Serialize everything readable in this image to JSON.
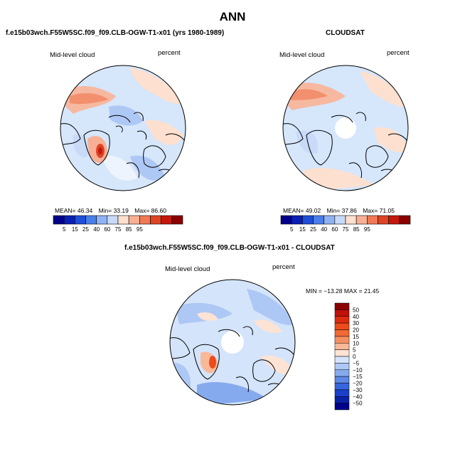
{
  "title": "ANN",
  "panels": [
    {
      "id": "model",
      "title": "f.e15b03wch.F55W5SC.f09_f09.CLB-OGW-T1-x01 (yrs 1980-1989)",
      "variable": "Mid-level cloud",
      "units": "percent",
      "stats": {
        "mean_label": "MEAN=",
        "mean": "46.34",
        "min_label": "Min=",
        "min": "33.19",
        "max_label": "Max=",
        "max": "86.60"
      }
    },
    {
      "id": "obs",
      "title": "CLOUDSAT",
      "variable": "Mid-level cloud",
      "units": "percent",
      "stats": {
        "mean_label": "MEAN=",
        "mean": "49.02",
        "min_label": "Min=",
        "min": "37.86",
        "max_label": "Max=",
        "max": "71.05"
      }
    },
    {
      "id": "diff",
      "title": "f.e15b03wch.F55W5SC.f09_f09.CLB-OGW-T1-x01 - CLOUDSAT",
      "variable": "Mid-level cloud",
      "units": "percent",
      "stats_line": "MIN = −13.28  MAX =  21.45"
    }
  ],
  "abs_colorbar": {
    "labels": [
      "5",
      "15",
      "25",
      "40",
      "60",
      "75",
      "85",
      "95"
    ],
    "colors": [
      "#00008b",
      "#0a1fb5",
      "#1f4fd8",
      "#4a7fe8",
      "#8fb2f2",
      "#c8daf8",
      "#fde0cf",
      "#f7b095",
      "#f07a55",
      "#de4525",
      "#c4180d",
      "#8b0000"
    ]
  },
  "diff_colorbar": {
    "labels": [
      "50",
      "40",
      "30",
      "20",
      "15",
      "10",
      "5",
      "0",
      "−5",
      "−10",
      "−15",
      "−20",
      "−30",
      "−40",
      "−50"
    ],
    "colors": [
      "#8b0000",
      "#c0110a",
      "#de2a10",
      "#ee4b1c",
      "#f26a35",
      "#f58f62",
      "#f9b898",
      "#fde3d4",
      "#d4e4fa",
      "#aec8f5",
      "#86aaee",
      "#5d88e6",
      "#3666dd",
      "#1a40cc",
      "#0b22a8",
      "#00008b"
    ]
  },
  "colors": {
    "ocean_base": "#d6e6fb",
    "coast": "#000000"
  }
}
